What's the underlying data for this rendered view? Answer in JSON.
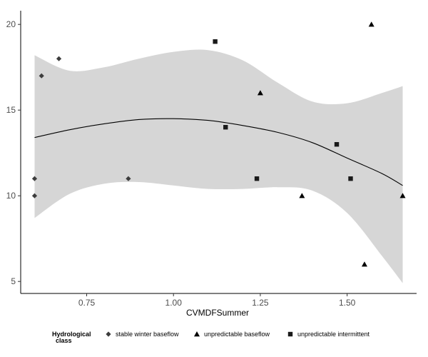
{
  "chart_data": {
    "type": "scatter",
    "xlabel": "CVMDFSummer",
    "ylabel": "",
    "xlim": [
      0.56,
      1.7
    ],
    "ylim": [
      4.3,
      20.8
    ],
    "x_ticks": [
      {
        "value": 0.75,
        "label": "0.75"
      },
      {
        "value": 1.0,
        "label": "1.00"
      },
      {
        "value": 1.25,
        "label": "1.25"
      },
      {
        "value": 1.5,
        "label": "1.50"
      }
    ],
    "y_ticks": [
      {
        "value": 5,
        "label": "5"
      },
      {
        "value": 10,
        "label": "10"
      },
      {
        "value": 15,
        "label": "15"
      },
      {
        "value": 20,
        "label": "20"
      }
    ],
    "grid": false,
    "legend": {
      "title_line1": "Hydrological",
      "title_line2": "class",
      "position": "bottom"
    },
    "series": [
      {
        "name": "stable winter baseflow",
        "marker": "diamond",
        "color": "#3d3d3d",
        "points": [
          {
            "x": 0.6,
            "y": 11
          },
          {
            "x": 0.6,
            "y": 10
          },
          {
            "x": 0.62,
            "y": 17
          },
          {
            "x": 0.67,
            "y": 18
          },
          {
            "x": 0.87,
            "y": 11
          }
        ]
      },
      {
        "name": "unpredictable baseflow",
        "marker": "triangle",
        "color": "#000000",
        "points": [
          {
            "x": 1.25,
            "y": 16
          },
          {
            "x": 1.37,
            "y": 10
          },
          {
            "x": 1.55,
            "y": 6
          },
          {
            "x": 1.57,
            "y": 20
          },
          {
            "x": 1.66,
            "y": 10
          }
        ]
      },
      {
        "name": "unpredictable intermittent",
        "marker": "square",
        "color": "#1a1a1a",
        "points": [
          {
            "x": 1.12,
            "y": 19
          },
          {
            "x": 1.15,
            "y": 14
          },
          {
            "x": 1.24,
            "y": 11
          },
          {
            "x": 1.47,
            "y": 13
          },
          {
            "x": 1.51,
            "y": 11
          }
        ]
      }
    ],
    "smooth": {
      "line_color": "#000000",
      "band_color": "#d6d6d6",
      "points": [
        {
          "x": 0.6,
          "y": 13.4,
          "lo": 8.7,
          "hi": 18.2
        },
        {
          "x": 0.7,
          "y": 13.85,
          "lo": 10.1,
          "hi": 17.3
        },
        {
          "x": 0.8,
          "y": 14.2,
          "lo": 10.7,
          "hi": 17.5
        },
        {
          "x": 0.9,
          "y": 14.45,
          "lo": 10.8,
          "hi": 18.0
        },
        {
          "x": 1.0,
          "y": 14.5,
          "lo": 10.6,
          "hi": 18.4
        },
        {
          "x": 1.1,
          "y": 14.4,
          "lo": 10.4,
          "hi": 18.5
        },
        {
          "x": 1.2,
          "y": 14.1,
          "lo": 10.4,
          "hi": 17.9
        },
        {
          "x": 1.3,
          "y": 13.7,
          "lo": 10.5,
          "hi": 16.6
        },
        {
          "x": 1.4,
          "y": 13.1,
          "lo": 10.3,
          "hi": 15.5
        },
        {
          "x": 1.5,
          "y": 12.2,
          "lo": 9.0,
          "hi": 15.4
        },
        {
          "x": 1.6,
          "y": 11.3,
          "lo": 6.5,
          "hi": 16.0
        },
        {
          "x": 1.66,
          "y": 10.6,
          "lo": 4.9,
          "hi": 16.4
        }
      ]
    }
  }
}
